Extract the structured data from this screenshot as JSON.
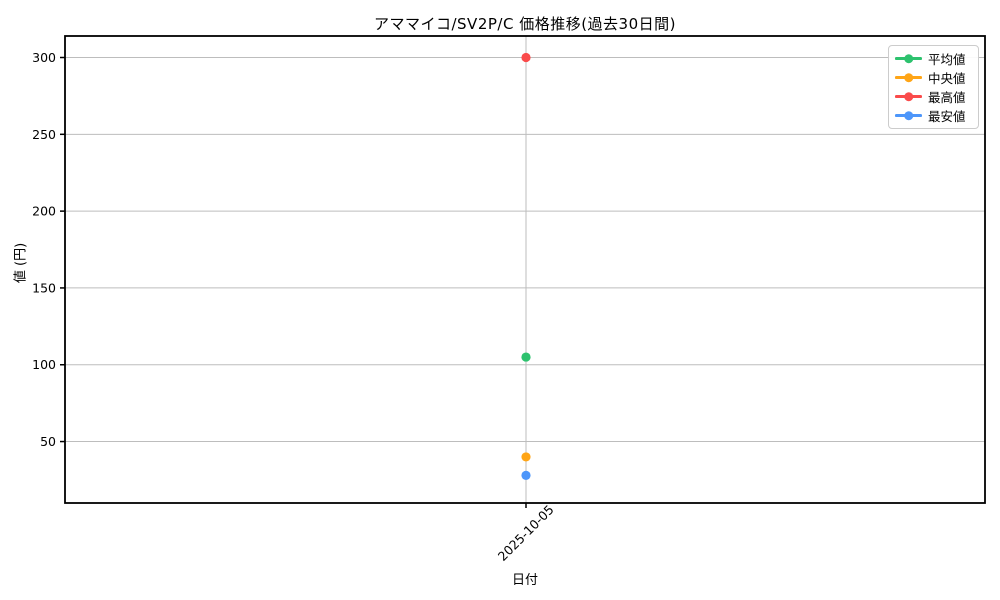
{
  "chart_data": {
    "type": "scatter",
    "title": "アママイコ/SV2P/C 価格推移(過去30日間)",
    "xlabel": "日付",
    "ylabel": "値 (円)",
    "categories": [
      "2025-10-05"
    ],
    "series": [
      {
        "key": "mean",
        "name": "平均値",
        "color": "#2dc26e",
        "values": [
          105
        ]
      },
      {
        "key": "median",
        "name": "中央値",
        "color": "#ffa516",
        "values": [
          40
        ]
      },
      {
        "key": "max",
        "name": "最高値",
        "color": "#fa4b4b",
        "values": [
          300
        ]
      },
      {
        "key": "min",
        "name": "最安値",
        "color": "#4d96fa",
        "values": [
          28
        ]
      }
    ],
    "ylim": [
      10,
      314
    ],
    "yticks": [
      50,
      100,
      150,
      200,
      250,
      300
    ],
    "grid": true,
    "legend_position": "upper-right",
    "marker": "circle",
    "x_tick_rotation": 45
  },
  "colors": {
    "grid": "#bdbdbd",
    "spine": "#000000",
    "tick": "#000000",
    "legend_border": "#cccccc",
    "background": "#ffffff"
  }
}
